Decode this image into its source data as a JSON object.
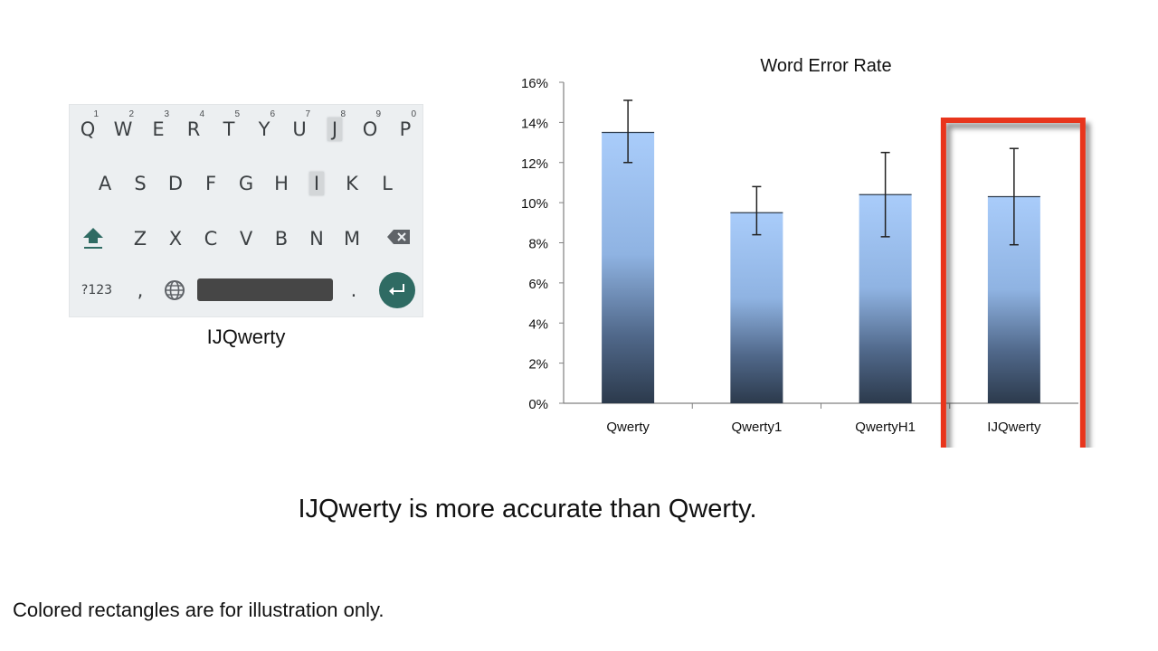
{
  "keyboard": {
    "rows": [
      [
        {
          "k": "Q",
          "h": "1"
        },
        {
          "k": "W",
          "h": "2"
        },
        {
          "k": "E",
          "h": "3"
        },
        {
          "k": "R",
          "h": "4"
        },
        {
          "k": "T",
          "h": "5"
        },
        {
          "k": "Y",
          "h": "6"
        },
        {
          "k": "U",
          "h": "7"
        },
        {
          "k": "J",
          "h": "8",
          "hl": true
        },
        {
          "k": "O",
          "h": "9"
        },
        {
          "k": "P",
          "h": "0"
        }
      ],
      [
        {
          "k": "A"
        },
        {
          "k": "S"
        },
        {
          "k": "D"
        },
        {
          "k": "F"
        },
        {
          "k": "G"
        },
        {
          "k": "H"
        },
        {
          "k": "I",
          "hl": true
        },
        {
          "k": "K"
        },
        {
          "k": "L"
        }
      ],
      [
        {
          "k": "Z"
        },
        {
          "k": "X"
        },
        {
          "k": "C"
        },
        {
          "k": "V"
        },
        {
          "k": "B"
        },
        {
          "k": "N"
        },
        {
          "k": "M"
        }
      ]
    ],
    "symbols_label": "?123",
    "comma_label": ",",
    "period_label": ".",
    "icons": {
      "shift": "shift-icon",
      "backspace": "backspace-icon",
      "globe": "globe-icon",
      "enter": "enter-icon"
    },
    "colors": {
      "enter": "#2f6b63",
      "shift": "#2f6b63"
    },
    "caption": "IJQwerty"
  },
  "chart_data": {
    "type": "bar",
    "title": "Word Error Rate",
    "categories": [
      "Qwerty",
      "Qwerty1",
      "QwertyH1",
      "IJQwerty"
    ],
    "values": [
      13.5,
      9.5,
      10.4,
      10.3
    ],
    "error_low": [
      12.0,
      8.4,
      8.3,
      7.9
    ],
    "error_high": [
      15.1,
      10.8,
      12.5,
      12.7
    ],
    "yticks": [
      "0%",
      "2%",
      "4%",
      "6%",
      "8%",
      "10%",
      "12%",
      "14%",
      "16%"
    ],
    "ylim": [
      0,
      16
    ],
    "highlight": "IJQwerty",
    "highlight_color": "#e8361c"
  },
  "statement": "IJQwerty is more accurate than Qwerty.",
  "footnote": "Colored rectangles are for illustration only."
}
